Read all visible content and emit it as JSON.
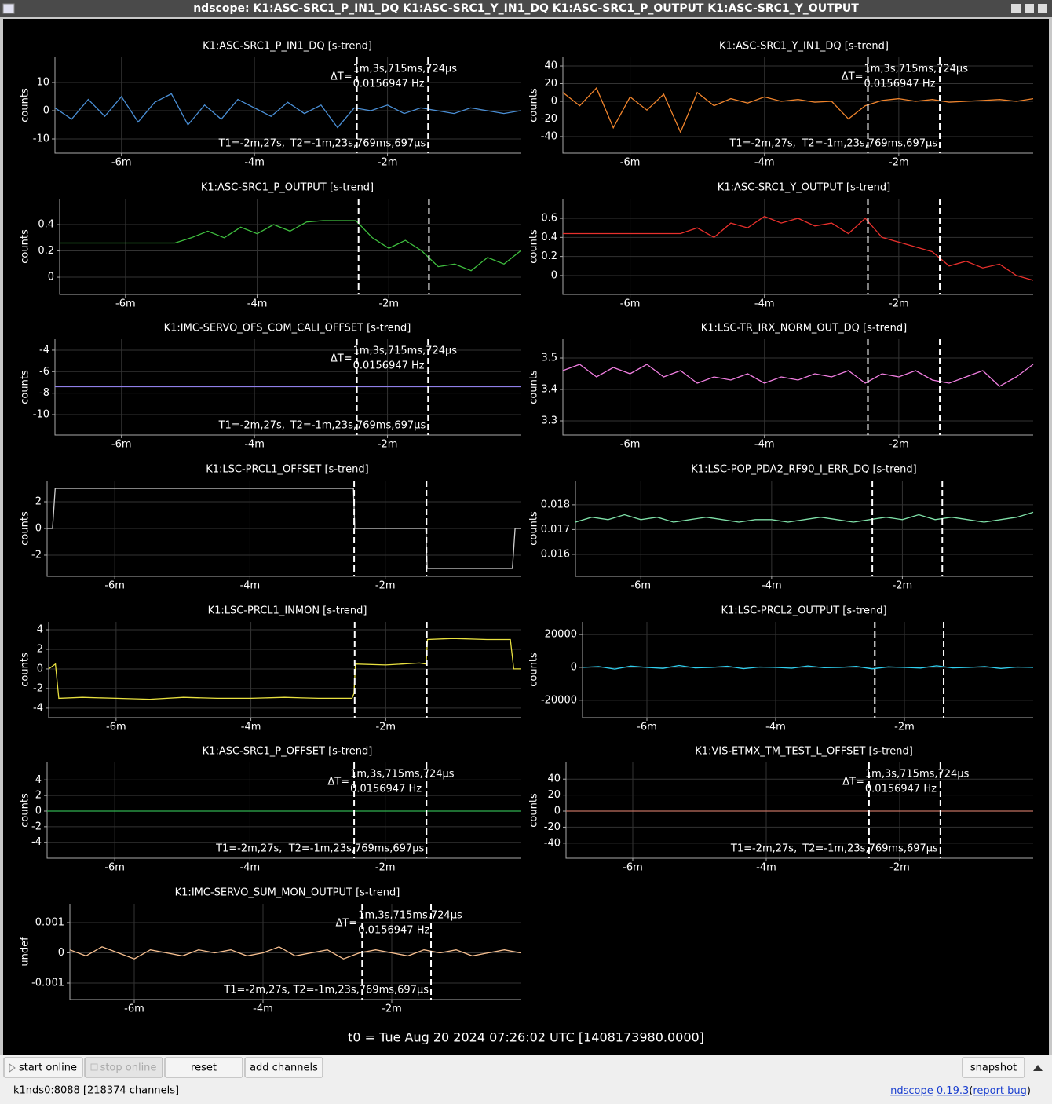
{
  "window": {
    "title": "ndscope: K1:ASC-SRC1_P_IN1_DQ K1:ASC-SRC1_Y_IN1_DQ K1:ASC-SRC1_P_OUTPUT K1:ASC-SRC1_Y_OUTPUT",
    "t0": "t0 = Tue Aug 20 2024 07:26:02 UTC [1408173980.0000]",
    "buttons": [
      "start online",
      "stop online",
      "reset",
      "add channels",
      "snapshot"
    ],
    "status": "k1nds0:8088  [218374 channels]",
    "app": "ndscope",
    "version": "0.19.3",
    "open": "(",
    "report": "report bug",
    "close": ")"
  },
  "cursors": {
    "t1": -2.46,
    "t2": -1.39,
    "delta_label": "ΔT=",
    "delta": "1m,3s,715ms,724μs",
    "freq": "0.0156947 Hz",
    "t1_label": "T1=-2m,27s,",
    "t2_label": "T2=-1m,23s,769ms,697μs"
  },
  "chart_data": [
    {
      "type": "line",
      "title": "K1:ASC-SRC1_P_IN1_DQ [s-trend]",
      "ylabel": "counts",
      "color": "#4a8fd6",
      "cursor_labels": true,
      "xlim": [
        -7,
        0
      ],
      "xticks": [
        {
          "value": -6,
          "label": "-6m"
        },
        {
          "value": -4,
          "label": "-4m"
        },
        {
          "value": -2,
          "label": "-2m"
        }
      ],
      "ylim": [
        -15,
        18.9
      ],
      "yticks": [
        10,
        0,
        -10
      ],
      "x": [
        -7,
        -6.75,
        -6.5,
        -6.25,
        -6,
        -5.75,
        -5.5,
        -5.25,
        -5,
        -4.75,
        -4.5,
        -4.25,
        -4,
        -3.75,
        -3.5,
        -3.25,
        -3,
        -2.75,
        -2.5,
        -2.25,
        -2,
        -1.75,
        -1.5,
        -1.25,
        -1,
        -0.75,
        -0.5,
        -0.25,
        0
      ],
      "values": [
        1,
        -3,
        4,
        -2,
        5,
        -4,
        3,
        6,
        -5,
        2,
        -3,
        4,
        1,
        -2,
        3,
        -1,
        2,
        -6,
        1,
        0,
        2,
        -1,
        1,
        0,
        -1,
        1,
        0,
        -1,
        0
      ]
    },
    {
      "type": "line",
      "title": "K1:ASC-SRC1_Y_IN1_DQ [s-trend]",
      "ylabel": "counts",
      "color": "#f0842c",
      "cursor_labels": true,
      "xlim": [
        -7,
        0
      ],
      "xticks": [
        {
          "value": -6,
          "label": "-6m"
        },
        {
          "value": -4,
          "label": "-4m"
        },
        {
          "value": -2,
          "label": "-2m"
        }
      ],
      "ylim": [
        -58.7,
        49.8
      ],
      "yticks": [
        40,
        20,
        0,
        -20,
        -40
      ],
      "x": [
        -7,
        -6.75,
        -6.5,
        -6.25,
        -6,
        -5.75,
        -5.5,
        -5.25,
        -5,
        -4.75,
        -4.5,
        -4.25,
        -4,
        -3.75,
        -3.5,
        -3.25,
        -3,
        -2.75,
        -2.5,
        -2.25,
        -2,
        -1.75,
        -1.5,
        -1.25,
        -1,
        -0.75,
        -0.5,
        -0.25,
        0
      ],
      "values": [
        10,
        -5,
        15,
        -30,
        5,
        -10,
        8,
        -35,
        10,
        -5,
        3,
        -2,
        5,
        0,
        2,
        -1,
        0,
        -20,
        -5,
        1,
        3,
        0,
        2,
        -1,
        0,
        1,
        2,
        0,
        3
      ]
    },
    {
      "type": "line",
      "title": "K1:ASC-SRC1_P_OUTPUT [s-trend]",
      "ylabel": "counts",
      "color": "#3fbf3f",
      "cursor_labels": false,
      "xlim": [
        -7,
        0
      ],
      "xticks": [
        {
          "value": -6,
          "label": "-6m"
        },
        {
          "value": -4,
          "label": "-4m"
        },
        {
          "value": -2,
          "label": "-2m"
        }
      ],
      "ylim": [
        -0.131,
        0.597
      ],
      "yticks": [
        0.4,
        0.2,
        0
      ],
      "x": [
        -7,
        -6.75,
        -6.5,
        -6.25,
        -6,
        -5.75,
        -5.5,
        -5.25,
        -5,
        -4.75,
        -4.5,
        -4.25,
        -4,
        -3.75,
        -3.5,
        -3.25,
        -3,
        -2.75,
        -2.5,
        -2.25,
        -2,
        -1.75,
        -1.5,
        -1.25,
        -1,
        -0.75,
        -0.5,
        -0.25,
        0
      ],
      "values": [
        0.26,
        0.26,
        0.26,
        0.26,
        0.26,
        0.26,
        0.26,
        0.26,
        0.3,
        0.35,
        0.3,
        0.38,
        0.33,
        0.4,
        0.35,
        0.42,
        0.43,
        0.43,
        0.43,
        0.3,
        0.22,
        0.28,
        0.2,
        0.08,
        0.1,
        0.05,
        0.15,
        0.1,
        0.2
      ]
    },
    {
      "type": "line",
      "title": "K1:ASC-SRC1_Y_OUTPUT [s-trend]",
      "ylabel": "counts",
      "color": "#e8302c",
      "cursor_labels": false,
      "xlim": [
        -7,
        0
      ],
      "xticks": [
        {
          "value": -6,
          "label": "-6m"
        },
        {
          "value": -4,
          "label": "-4m"
        },
        {
          "value": -2,
          "label": "-2m"
        }
      ],
      "ylim": [
        -0.198,
        0.806
      ],
      "yticks": [
        0.6,
        0.4,
        0.2,
        0
      ],
      "x": [
        -7,
        -6.75,
        -6.5,
        -6.25,
        -6,
        -5.75,
        -5.5,
        -5.25,
        -5,
        -4.75,
        -4.5,
        -4.25,
        -4,
        -3.75,
        -3.5,
        -3.25,
        -3,
        -2.75,
        -2.5,
        -2.25,
        -2,
        -1.75,
        -1.5,
        -1.25,
        -1,
        -0.75,
        -0.5,
        -0.25,
        0
      ],
      "values": [
        0.44,
        0.44,
        0.44,
        0.44,
        0.44,
        0.44,
        0.44,
        0.44,
        0.5,
        0.4,
        0.55,
        0.5,
        0.62,
        0.55,
        0.6,
        0.52,
        0.55,
        0.44,
        0.6,
        0.4,
        0.35,
        0.3,
        0.25,
        0.1,
        0.15,
        0.08,
        0.12,
        0,
        -0.05
      ]
    },
    {
      "type": "line",
      "title": "K1:IMC-SERVO_OFS_COM_CALI_OFFSET [s-trend]",
      "ylabel": "counts",
      "color": "#8f7fe8",
      "cursor_labels": true,
      "xlim": [
        -7,
        0
      ],
      "xticks": [
        {
          "value": -6,
          "label": "-6m"
        },
        {
          "value": -4,
          "label": "-4m"
        },
        {
          "value": -2,
          "label": "-2m"
        }
      ],
      "ylim": [
        -11.9,
        -2.98
      ],
      "yticks": [
        -4,
        -6,
        -8,
        -10
      ],
      "x": [
        -7,
        0
      ],
      "values": [
        -7.4,
        -7.4
      ]
    },
    {
      "type": "line",
      "title": "K1:LSC-TR_IRX_NORM_OUT_DQ [s-trend]",
      "ylabel": "counts",
      "color": "#f07ee0",
      "cursor_labels": false,
      "xlim": [
        -7,
        0
      ],
      "xticks": [
        {
          "value": -6,
          "label": "-6m"
        },
        {
          "value": -4,
          "label": "-4m"
        },
        {
          "value": -2,
          "label": "-2m"
        }
      ],
      "ylim": [
        3.255,
        3.56
      ],
      "yticks": [
        3.5,
        3.4,
        3.3
      ],
      "x": [
        -7,
        -6.75,
        -6.5,
        -6.25,
        -6,
        -5.75,
        -5.5,
        -5.25,
        -5,
        -4.75,
        -4.5,
        -4.25,
        -4,
        -3.75,
        -3.5,
        -3.25,
        -3,
        -2.75,
        -2.5,
        -2.25,
        -2,
        -1.75,
        -1.5,
        -1.25,
        -1,
        -0.75,
        -0.5,
        -0.25,
        0
      ],
      "values": [
        3.46,
        3.48,
        3.44,
        3.47,
        3.45,
        3.48,
        3.44,
        3.46,
        3.42,
        3.44,
        3.43,
        3.45,
        3.42,
        3.44,
        3.43,
        3.45,
        3.44,
        3.46,
        3.42,
        3.45,
        3.44,
        3.46,
        3.43,
        3.42,
        3.44,
        3.46,
        3.41,
        3.44,
        3.48
      ]
    },
    {
      "type": "line",
      "title": "K1:LSC-PRCL1_OFFSET [s-trend]",
      "ylabel": "counts",
      "color": "#d0d0d0",
      "cursor_labels": false,
      "xlim": [
        -7,
        0
      ],
      "xticks": [
        {
          "value": -6,
          "label": "-6m"
        },
        {
          "value": -4,
          "label": "-4m"
        },
        {
          "value": -2,
          "label": "-2m"
        }
      ],
      "ylim": [
        -3.59,
        3.59
      ],
      "yticks": [
        2,
        0,
        -2
      ],
      "x": [
        -7,
        -6.92,
        -6.88,
        -2.47,
        -2.45,
        -1.4,
        -1.38,
        -0.12,
        -0.08,
        0
      ],
      "values": [
        0,
        0,
        3,
        3,
        0,
        0,
        -3,
        -3,
        0,
        0
      ]
    },
    {
      "type": "line",
      "title": "K1:LSC-POP_PDA2_RF90_I_ERR_DQ [s-trend]",
      "ylabel": "counts",
      "color": "#7fe0a8",
      "cursor_labels": false,
      "xlim": [
        -7,
        0
      ],
      "xticks": [
        {
          "value": -6,
          "label": "-6m"
        },
        {
          "value": -4,
          "label": "-4m"
        },
        {
          "value": -2,
          "label": "-2m"
        }
      ],
      "ylim": [
        0.01511,
        0.01898
      ],
      "yticks": [
        0.018,
        0.017,
        0.016
      ],
      "x": [
        -7,
        -6.75,
        -6.5,
        -6.25,
        -6,
        -5.75,
        -5.5,
        -5.25,
        -5,
        -4.75,
        -4.5,
        -4.25,
        -4,
        -3.75,
        -3.5,
        -3.25,
        -3,
        -2.75,
        -2.5,
        -2.25,
        -2,
        -1.75,
        -1.5,
        -1.25,
        -1,
        -0.75,
        -0.5,
        -0.25,
        0
      ],
      "values": [
        0.0173,
        0.0175,
        0.0174,
        0.0176,
        0.0174,
        0.0175,
        0.0173,
        0.0174,
        0.0175,
        0.0174,
        0.0173,
        0.0174,
        0.0174,
        0.0173,
        0.0174,
        0.0175,
        0.0174,
        0.0173,
        0.0174,
        0.0175,
        0.0174,
        0.0176,
        0.0174,
        0.0175,
        0.0174,
        0.0173,
        0.0174,
        0.0175,
        0.0177
      ]
    },
    {
      "type": "line",
      "title": "K1:LSC-PRCL1_INMON [s-trend]",
      "ylabel": "counts",
      "color": "#e8e040",
      "cursor_labels": false,
      "xlim": [
        -7,
        0
      ],
      "xticks": [
        {
          "value": -6,
          "label": "-6m"
        },
        {
          "value": -4,
          "label": "-4m"
        },
        {
          "value": -2,
          "label": "-2m"
        }
      ],
      "ylim": [
        -4.97,
        4.8
      ],
      "yticks": [
        4,
        2,
        0,
        -2,
        -4
      ],
      "x": [
        -7,
        -6.9,
        -6.85,
        -6.5,
        -6,
        -5.5,
        -5,
        -4.5,
        -4,
        -3.5,
        -3,
        -2.5,
        -2.47,
        -2.45,
        -2,
        -1.5,
        -1.4,
        -1.38,
        -1,
        -0.5,
        -0.15,
        -0.1,
        0
      ],
      "values": [
        0,
        0.5,
        -3,
        -2.9,
        -3,
        -3.1,
        -2.9,
        -3,
        -3,
        -2.9,
        -3,
        -3,
        -2.5,
        0.5,
        0.4,
        0.6,
        0.5,
        3,
        3.1,
        3,
        3,
        0,
        0
      ]
    },
    {
      "type": "line",
      "title": "K1:LSC-PRCL2_OUTPUT [s-trend]",
      "ylabel": "counts",
      "color": "#30d0f0",
      "cursor_labels": false,
      "xlim": [
        -7,
        0
      ],
      "xticks": [
        {
          "value": -6,
          "label": "-6m"
        },
        {
          "value": -4,
          "label": "-4m"
        },
        {
          "value": -2,
          "label": "-2m"
        }
      ],
      "ylim": [
        -30600,
        27700
      ],
      "yticks": [
        20000,
        0,
        -20000
      ],
      "x": [
        -7,
        -6.75,
        -6.5,
        -6.25,
        -6,
        -5.75,
        -5.5,
        -5.25,
        -5,
        -4.75,
        -4.5,
        -4.25,
        -4,
        -3.75,
        -3.5,
        -3.25,
        -3,
        -2.75,
        -2.5,
        -2.25,
        -2,
        -1.75,
        -1.5,
        -1.25,
        -1,
        -0.75,
        -0.5,
        -0.25,
        0
      ],
      "values": [
        0,
        500,
        -1000,
        800,
        0,
        -600,
        1200,
        -300,
        0,
        700,
        -800,
        200,
        0,
        -500,
        900,
        -200,
        0,
        600,
        -900,
        300,
        0,
        -400,
        1000,
        -300,
        0,
        500,
        -700,
        200,
        0
      ]
    },
    {
      "type": "line",
      "title": "K1:ASC-SRC1_P_OFFSET [s-trend]",
      "ylabel": "counts",
      "color": "#30b050",
      "cursor_labels": true,
      "xlim": [
        -7,
        0
      ],
      "xticks": [
        {
          "value": -6,
          "label": "-6m"
        },
        {
          "value": -4,
          "label": "-4m"
        },
        {
          "value": -2,
          "label": "-2m"
        }
      ],
      "ylim": [
        -6.04,
        6.24
      ],
      "yticks": [
        4,
        2,
        0,
        -2,
        -4
      ],
      "x": [
        -7,
        0
      ],
      "values": [
        0,
        0
      ]
    },
    {
      "type": "line",
      "title": "K1:VIS-ETMX_TM_TEST_L_OFFSET [s-trend]",
      "ylabel": "counts",
      "color": "#c07060",
      "cursor_labels": true,
      "xlim": [
        -7,
        0
      ],
      "xticks": [
        {
          "value": -6,
          "label": "-6m"
        },
        {
          "value": -4,
          "label": "-4m"
        },
        {
          "value": -2,
          "label": "-2m"
        }
      ],
      "ylim": [
        -58.8,
        60.8
      ],
      "yticks": [
        40,
        20,
        0,
        -20,
        -40
      ],
      "x": [
        -7,
        0
      ],
      "values": [
        0,
        0
      ]
    },
    {
      "type": "line",
      "title": "K1:IMC-SERVO_SUM_MON_OUTPUT [s-trend]",
      "ylabel": "undef",
      "color": "#f8c090",
      "cursor_labels": true,
      "xlim": [
        -7,
        0
      ],
      "xticks": [
        {
          "value": -6,
          "label": "-6m"
        },
        {
          "value": -4,
          "label": "-4m"
        },
        {
          "value": -2,
          "label": "-2m"
        }
      ],
      "ylim": [
        -0.001545,
        0.001623
      ],
      "yticks": [
        0.001,
        0,
        -0.001
      ],
      "x": [
        -7,
        -6.75,
        -6.5,
        -6.25,
        -6,
        -5.75,
        -5.5,
        -5.25,
        -5,
        -4.75,
        -4.5,
        -4.25,
        -4,
        -3.75,
        -3.5,
        -3.25,
        -3,
        -2.75,
        -2.5,
        -2.25,
        -2,
        -1.75,
        -1.5,
        -1.25,
        -1,
        -0.75,
        -0.5,
        -0.25,
        0
      ],
      "values": [
        0.0001,
        -0.0001,
        0.0002,
        0,
        -0.0002,
        0.0001,
        0,
        -0.0001,
        0.0001,
        0,
        0.0001,
        -0.0001,
        0,
        0.0002,
        -0.0001,
        0,
        0.0001,
        -0.0002,
        0,
        0.0001,
        0,
        -0.0001,
        0.0001,
        0,
        0.0001,
        -0.0001,
        0,
        0.0001,
        0
      ]
    }
  ]
}
